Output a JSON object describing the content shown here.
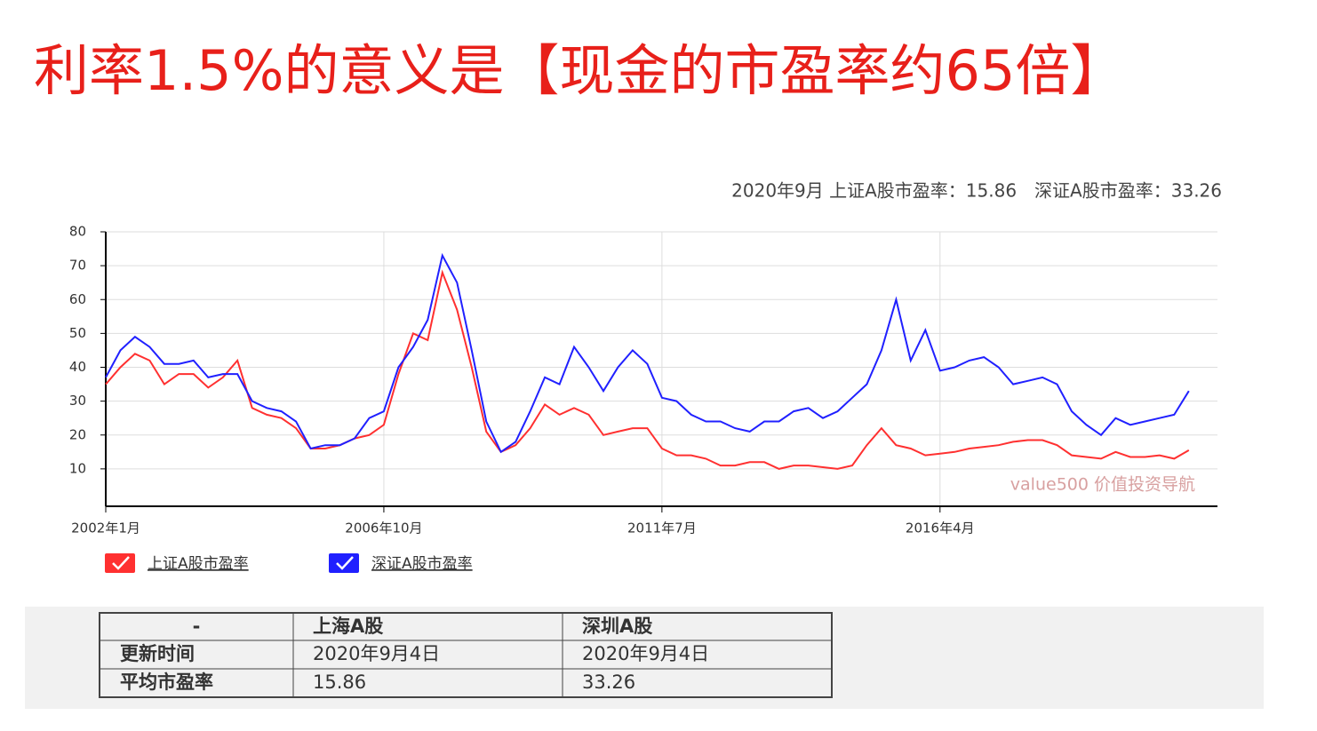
{
  "slide_title": "利率1.5%的意义是【现金的市盈率约65倍】",
  "chart_data": {
    "type": "line",
    "annotation": "2020年9月 上证A股市盈率：15.86　深证A股市盈率：33.26",
    "watermark": "value500 价值投资导航",
    "categories": [
      "2002年1月",
      null,
      null,
      null,
      null,
      null,
      null,
      null,
      null,
      null,
      null,
      null,
      null,
      null,
      null,
      null,
      null,
      null,
      null,
      "2006年10月",
      null,
      null,
      null,
      null,
      null,
      null,
      null,
      null,
      null,
      null,
      null,
      null,
      null,
      null,
      null,
      null,
      null,
      null,
      "2011年7月",
      null,
      null,
      null,
      null,
      null,
      null,
      null,
      null,
      null,
      null,
      null,
      null,
      null,
      null,
      null,
      null,
      null,
      null,
      "2016年4月",
      null,
      null,
      null,
      null,
      null,
      null,
      null,
      null,
      null,
      null,
      null,
      null,
      null,
      null,
      null,
      null,
      null
    ],
    "series": [
      {
        "name": "上证A股市盈率",
        "color": "#ff3030",
        "values": [
          35,
          40,
          44,
          42,
          35,
          38,
          38,
          34,
          37,
          42,
          28,
          26,
          25,
          22,
          16,
          16,
          17,
          19,
          20,
          23,
          38,
          50,
          48,
          68,
          57,
          40,
          21,
          15,
          17,
          22,
          29,
          26,
          28,
          26,
          20,
          21,
          22,
          22,
          16,
          14,
          14,
          13,
          11,
          11,
          12,
          12,
          10,
          11,
          11,
          10.5,
          10,
          11,
          17,
          22,
          17,
          16,
          14,
          14.5,
          15,
          16,
          16.5,
          17,
          18,
          18.5,
          18.5,
          17,
          14,
          13.5,
          13,
          15,
          13.5,
          13.5,
          14,
          13,
          15.5
        ]
      },
      {
        "name": "深证A股市盈率",
        "color": "#2020ff",
        "values": [
          37,
          45,
          49,
          46,
          41,
          41,
          42,
          37,
          38,
          38,
          30,
          28,
          27,
          24,
          16,
          17,
          17,
          19,
          25,
          27,
          40,
          46,
          54,
          73,
          65,
          45,
          24,
          15,
          18,
          27,
          37,
          35,
          46,
          40,
          33,
          40,
          45,
          41,
          31,
          30,
          26,
          24,
          24,
          22,
          21,
          24,
          24,
          27,
          28,
          25,
          27,
          31,
          35,
          45,
          60,
          42,
          51,
          39,
          40,
          42,
          43,
          40,
          35,
          36,
          37,
          35,
          27,
          23,
          20,
          25,
          23,
          24,
          25,
          26,
          33
        ]
      }
    ],
    "ylim": [
      0,
      80
    ],
    "yticks": [
      10,
      20,
      30,
      40,
      50,
      60,
      70,
      80
    ],
    "grid": true
  },
  "table": {
    "header": [
      "-",
      "上海A股",
      "深圳A股"
    ],
    "rows": [
      [
        "更新时间",
        "2020年9月4日",
        "2020年9月4日"
      ],
      [
        "平均市盈率",
        "15.86",
        "33.26"
      ]
    ]
  }
}
